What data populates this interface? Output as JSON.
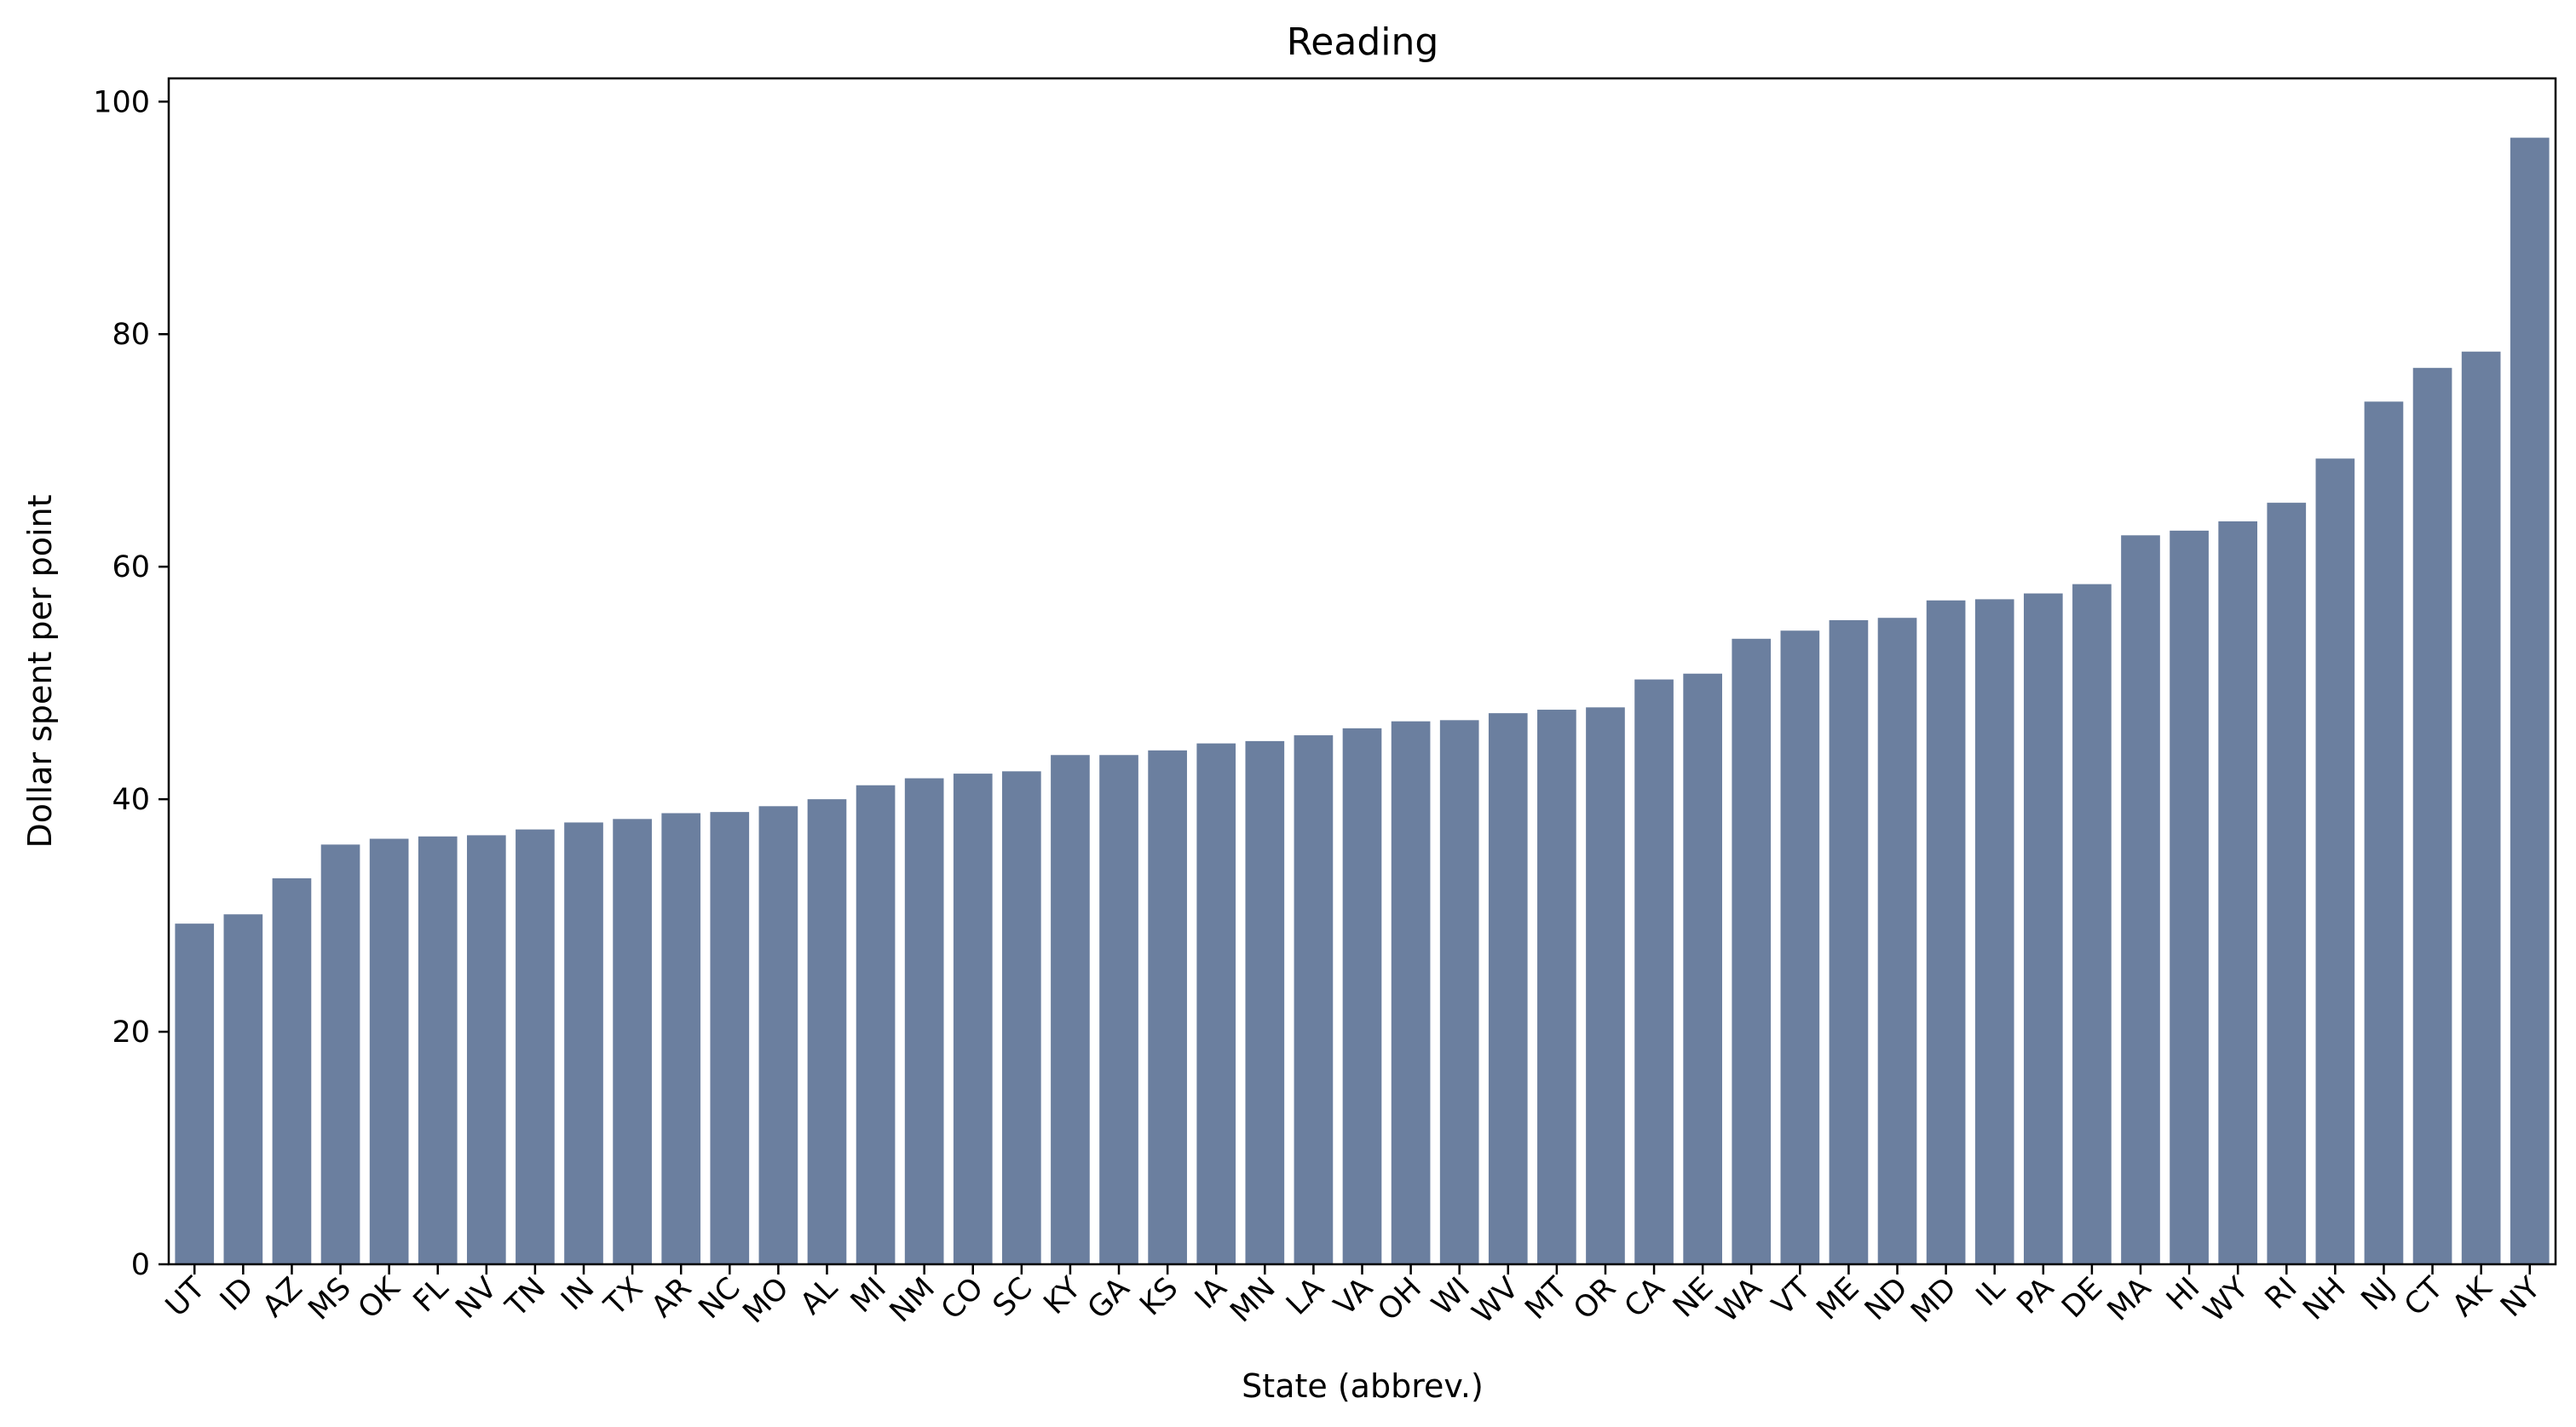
{
  "chart_data": {
    "type": "bar",
    "title": "Reading",
    "xlabel": "State (abbrev.)",
    "ylabel": "Dollar spent per point",
    "ylim": [
      0,
      102
    ],
    "yticks": [
      0,
      20,
      40,
      60,
      80,
      100
    ],
    "grid": false,
    "legend": "none",
    "bar_color": "#6b7f9f",
    "categories": [
      "UT",
      "ID",
      "AZ",
      "MS",
      "OK",
      "FL",
      "NV",
      "TN",
      "IN",
      "TX",
      "AR",
      "NC",
      "MO",
      "AL",
      "MI",
      "NM",
      "CO",
      "SC",
      "KY",
      "GA",
      "KS",
      "IA",
      "MN",
      "LA",
      "VA",
      "OH",
      "WI",
      "WV",
      "MT",
      "OR",
      "CA",
      "NE",
      "WA",
      "VT",
      "ME",
      "ND",
      "MD",
      "IL",
      "PA",
      "DE",
      "MA",
      "HI",
      "WY",
      "RI",
      "NH",
      "NJ",
      "CT",
      "AK",
      "NY"
    ],
    "values": [
      29.3,
      30.1,
      33.2,
      36.1,
      36.6,
      36.8,
      36.9,
      37.4,
      38.0,
      38.3,
      38.8,
      38.9,
      39.4,
      40.0,
      41.2,
      41.8,
      42.2,
      42.4,
      43.8,
      43.8,
      44.2,
      44.8,
      45.0,
      45.5,
      46.1,
      46.7,
      46.8,
      47.4,
      47.7,
      47.9,
      50.3,
      50.8,
      53.8,
      54.5,
      55.4,
      55.6,
      57.1,
      57.2,
      57.7,
      58.5,
      62.7,
      63.1,
      63.9,
      65.5,
      69.3,
      74.2,
      77.1,
      78.5,
      96.9
    ]
  }
}
